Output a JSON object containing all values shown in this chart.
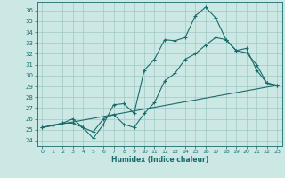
{
  "xlabel": "Humidex (Indice chaleur)",
  "background_color": "#cce8e5",
  "grid_color": "#a0c8c5",
  "line_color": "#1a6b6b",
  "xlim": [
    -0.5,
    23.5
  ],
  "ylim": [
    23.5,
    36.8
  ],
  "xticks": [
    0,
    1,
    2,
    3,
    4,
    5,
    6,
    7,
    8,
    9,
    10,
    11,
    12,
    13,
    14,
    15,
    16,
    17,
    18,
    19,
    20,
    21,
    22,
    23
  ],
  "yticks": [
    24,
    25,
    26,
    27,
    28,
    29,
    30,
    31,
    32,
    33,
    34,
    35,
    36
  ],
  "line1_x": [
    0,
    1,
    2,
    3,
    4,
    5,
    6,
    7,
    8,
    9,
    10,
    11,
    12,
    13,
    14,
    15,
    16,
    17,
    18,
    19,
    20,
    21,
    22,
    23
  ],
  "line1_y": [
    25.2,
    25.4,
    25.6,
    25.6,
    25.2,
    24.2,
    25.5,
    27.3,
    27.4,
    26.5,
    30.5,
    31.5,
    33.3,
    33.2,
    33.5,
    35.5,
    36.3,
    35.3,
    33.3,
    32.3,
    32.1,
    31.0,
    29.3,
    29.1
  ],
  "line2_x": [
    0,
    1,
    2,
    3,
    4,
    5,
    6,
    7,
    8,
    9,
    10,
    11,
    12,
    13,
    14,
    15,
    16,
    17,
    18,
    19,
    20,
    21,
    22,
    23
  ],
  "line2_y": [
    25.2,
    25.4,
    25.6,
    26.0,
    25.2,
    24.8,
    26.0,
    26.4,
    25.5,
    25.2,
    26.5,
    27.5,
    29.5,
    30.2,
    31.5,
    32.0,
    32.8,
    33.5,
    33.3,
    32.3,
    32.5,
    30.5,
    29.3,
    29.1
  ],
  "line3_x": [
    0,
    23
  ],
  "line3_y": [
    25.2,
    29.1
  ]
}
